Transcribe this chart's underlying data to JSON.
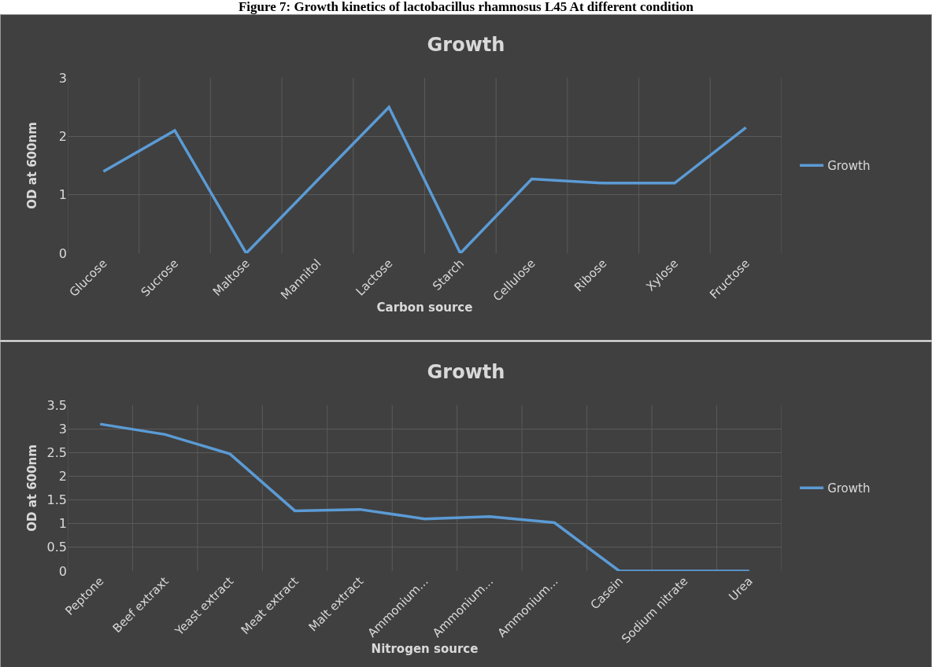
{
  "chart_data": [
    {
      "type": "line",
      "title": "Growth",
      "xlabel": "Carbon source",
      "ylabel": "OD at 600nm",
      "annotations": [
        "Figure 7: Growth kinetics of lactobacillus rhamnosus L45 At different condition"
      ],
      "categories": [
        "Glucose",
        "Sucrose",
        "Maltose",
        "Mannitol",
        "Lactose",
        "Starch",
        "Cellulose",
        "Ribose",
        "Xylose",
        "Fructose"
      ],
      "series": [
        {
          "name": "Growth",
          "color": "#5b9bd5",
          "values": [
            1.4,
            2.1,
            0,
            1.25,
            2.5,
            0,
            1.27,
            1.2,
            1.2,
            2.15
          ]
        }
      ],
      "ylim": [
        0,
        3
      ],
      "yticks": [
        0,
        1,
        2,
        3
      ],
      "grid": true,
      "legend": "right",
      "marker": "none",
      "line_style": "solid"
    },
    {
      "type": "line",
      "title": "Growth",
      "xlabel": "Nitrogen source",
      "ylabel": "OD at 600nm",
      "categories": [
        "Peptone",
        "Beef extraxt",
        "Yeast extract",
        "Meat extract",
        "Malt extract",
        "Ammonium...",
        "Ammonium...",
        "Ammonium...",
        "Casein",
        "Sodium nitrate",
        "Urea"
      ],
      "series": [
        {
          "name": "Growth",
          "color": "#5b9bd5",
          "values": [
            3.1,
            2.88,
            2.47,
            1.27,
            1.3,
            1.1,
            1.15,
            1.02,
            0,
            0,
            0
          ]
        }
      ],
      "ylim": [
        0,
        3.5
      ],
      "yticks": [
        0,
        0.5,
        1,
        1.5,
        2,
        2.5,
        3,
        3.5
      ],
      "grid": true,
      "legend": "right",
      "marker": "none",
      "line_style": "solid"
    }
  ]
}
